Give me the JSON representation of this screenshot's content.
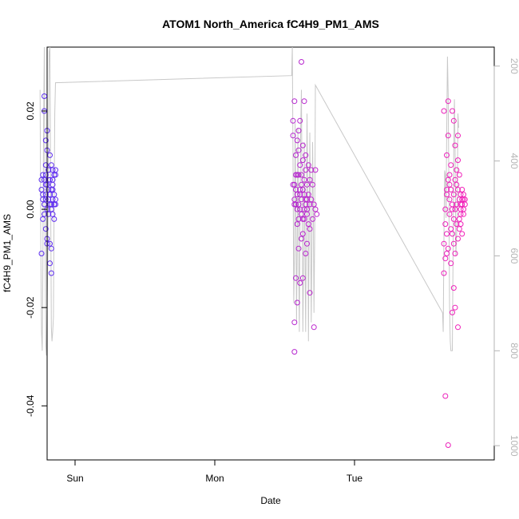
{
  "chart_data": {
    "type": "scatter",
    "title": "ATOM1 North_America fC4H9_PM1_AMS",
    "xlabel": "Date",
    "ylabel": "fC4H9_PM1_AMS",
    "x_ticks": [
      "Sun",
      "Mon",
      "Tue"
    ],
    "xlim": [
      -1.2,
      2.0
    ],
    "ylim": [
      -0.051,
      0.033
    ],
    "y_ticks": [
      -0.04,
      -0.02,
      0.0,
      0.02
    ],
    "y2lim": [
      1030,
      160
    ],
    "y2_ticks": [
      200,
      400,
      600,
      800,
      1000
    ],
    "grid": false,
    "legend": "none",
    "colors": {
      "points_start": "#5a2df2",
      "points_end": "#f220b8",
      "line": "#c8c8c8"
    },
    "series": [
      {
        "points": [
          [
            -1.24,
            0.006
          ],
          [
            -1.24,
            0.004
          ],
          [
            -1.23,
            0.003
          ],
          [
            -1.23,
            0.007
          ],
          [
            -1.23,
            -0.002
          ],
          [
            -1.22,
            0.02
          ],
          [
            -1.22,
            0.023
          ],
          [
            -1.22,
            -0.001
          ],
          [
            -1.22,
            0.001
          ],
          [
            -1.21,
            0.014
          ],
          [
            -1.21,
            -0.004
          ],
          [
            -1.21,
            0.002
          ],
          [
            -1.21,
            0.005
          ],
          [
            -1.21,
            0.007
          ],
          [
            -1.2,
            0.012
          ],
          [
            -1.2,
            -0.006
          ],
          [
            -1.2,
            -0.007
          ],
          [
            -1.2,
            0.016
          ],
          [
            -1.2,
            0.0
          ],
          [
            -1.19,
            0.008
          ],
          [
            -1.19,
            -0.001
          ],
          [
            -1.19,
            0.004
          ],
          [
            -1.19,
            0.008
          ],
          [
            -1.18,
            0.001
          ],
          [
            -1.18,
            -0.007
          ],
          [
            -1.18,
            -0.011
          ],
          [
            -1.18,
            0.011
          ],
          [
            -1.18,
            0.006
          ],
          [
            -1.17,
            0.001
          ],
          [
            -1.17,
            0.004
          ],
          [
            -1.17,
            0.009
          ],
          [
            -1.17,
            -0.008
          ],
          [
            -1.17,
            -0.013
          ],
          [
            -1.16,
            0.008
          ],
          [
            -1.16,
            0.002
          ],
          [
            -1.16,
            -0.001
          ],
          [
            -1.16,
            0.005
          ],
          [
            -1.15,
            0.007
          ],
          [
            -1.15,
            0.001
          ],
          [
            -1.15,
            0.003
          ],
          [
            -1.15,
            -0.002
          ],
          [
            -1.14,
            0.007
          ],
          [
            -1.14,
            0.002
          ],
          [
            -1.14,
            0.001
          ],
          [
            -1.24,
            -0.009
          ],
          [
            -1.23,
            0.002
          ],
          [
            -1.22,
            0.006
          ],
          [
            -1.21,
            0.009
          ],
          [
            -1.19,
            0.002
          ],
          [
            -1.17,
            0.0
          ],
          [
            -1.16,
            0.004
          ],
          [
            -1.15,
            0.001
          ],
          [
            -1.2,
            0.005
          ],
          [
            -1.18,
            0.003
          ],
          [
            -1.16,
            0.006
          ],
          [
            -1.14,
            0.008
          ],
          [
            -1.19,
            0.006
          ],
          [
            -1.21,
            0.003
          ],
          [
            0.56,
            0.018
          ],
          [
            0.56,
            0.015
          ],
          [
            0.56,
            0.005
          ],
          [
            0.57,
            0.001
          ],
          [
            0.57,
            -0.023
          ],
          [
            0.57,
            0.022
          ],
          [
            0.57,
            0.005
          ],
          [
            0.57,
            -0.029
          ],
          [
            0.58,
            0.011
          ],
          [
            0.58,
            0.004
          ],
          [
            0.58,
            -0.014
          ],
          [
            0.58,
            0.001
          ],
          [
            0.59,
            -0.019
          ],
          [
            0.59,
            0.003
          ],
          [
            0.59,
            0.0
          ],
          [
            0.59,
            0.014
          ],
          [
            0.6,
            -0.008
          ],
          [
            0.6,
            0.007
          ],
          [
            0.6,
            -0.002
          ],
          [
            0.6,
            0.016
          ],
          [
            0.6,
            0.012
          ],
          [
            0.61,
            -0.015
          ],
          [
            0.61,
            0.003
          ],
          [
            0.61,
            0.0
          ],
          [
            0.61,
            0.009
          ],
          [
            0.62,
            0.03
          ],
          [
            0.62,
            -0.006
          ],
          [
            0.62,
            0.007
          ],
          [
            0.62,
            0.002
          ],
          [
            0.62,
            -0.001
          ],
          [
            0.63,
            -0.014
          ],
          [
            0.63,
            -0.005
          ],
          [
            0.63,
            0.004
          ],
          [
            0.63,
            0.013
          ],
          [
            0.64,
            0.0
          ],
          [
            0.64,
            0.006
          ],
          [
            0.64,
            -0.002
          ],
          [
            0.64,
            0.022
          ],
          [
            0.65,
            -0.009
          ],
          [
            0.65,
            0.011
          ],
          [
            0.65,
            0.002
          ],
          [
            0.65,
            0.008
          ],
          [
            0.66,
            -0.001
          ],
          [
            0.66,
            0.005
          ],
          [
            0.66,
            -0.007
          ],
          [
            0.66,
            0.0
          ],
          [
            0.67,
            -0.003
          ],
          [
            0.67,
            0.009
          ],
          [
            0.67,
            0.003
          ],
          [
            0.68,
            -0.017
          ],
          [
            0.68,
            0.006
          ],
          [
            0.68,
            0.001
          ],
          [
            0.69,
            0.002
          ],
          [
            0.69,
            0.008
          ],
          [
            0.7,
            -0.002
          ],
          [
            0.7,
            0.005
          ],
          [
            0.71,
            0.001
          ],
          [
            0.71,
            -0.024
          ],
          [
            0.72,
            0.0
          ],
          [
            0.72,
            0.008
          ],
          [
            0.73,
            -0.001
          ],
          [
            0.57,
            0.002
          ],
          [
            0.59,
            -0.003
          ],
          [
            0.61,
            0.004
          ],
          [
            0.63,
            -0.002
          ],
          [
            0.65,
            0.001
          ],
          [
            0.58,
            0.007
          ],
          [
            0.6,
            0.001
          ],
          [
            0.62,
            0.005
          ],
          [
            0.64,
            0.003
          ],
          [
            0.66,
            0.002
          ],
          [
            0.68,
            -0.004
          ],
          [
            0.63,
            0.01
          ],
          [
            0.61,
            0.018
          ],
          [
            0.59,
            0.007
          ],
          [
            1.64,
            0.02
          ],
          [
            1.64,
            -0.007
          ],
          [
            1.64,
            -0.013
          ],
          [
            1.65,
            -0.038
          ],
          [
            1.65,
            0.0
          ],
          [
            1.65,
            -0.01
          ],
          [
            1.66,
            0.004
          ],
          [
            1.66,
            0.011
          ],
          [
            1.66,
            -0.005
          ],
          [
            1.66,
            0.003
          ],
          [
            1.67,
            -0.048
          ],
          [
            1.67,
            0.022
          ],
          [
            1.67,
            0.015
          ],
          [
            1.67,
            -0.008
          ],
          [
            1.68,
            -0.001
          ],
          [
            1.68,
            0.002
          ],
          [
            1.68,
            0.007
          ],
          [
            1.69,
            -0.004
          ],
          [
            1.69,
            0.009
          ],
          [
            1.69,
            -0.011
          ],
          [
            1.7,
            0.001
          ],
          [
            1.7,
            0.02
          ],
          [
            1.7,
            -0.005
          ],
          [
            1.71,
            0.018
          ],
          [
            1.71,
            0.003
          ],
          [
            1.71,
            -0.016
          ],
          [
            1.71,
            -0.007
          ],
          [
            1.72,
            0.0
          ],
          [
            1.72,
            0.013
          ],
          [
            1.72,
            -0.02
          ],
          [
            1.73,
            0.008
          ],
          [
            1.73,
            -0.003
          ],
          [
            1.73,
            0.005
          ],
          [
            1.74,
            -0.024
          ],
          [
            1.74,
            0.01
          ],
          [
            1.74,
            0.015
          ],
          [
            1.75,
            -0.002
          ],
          [
            1.75,
            0.002
          ],
          [
            1.75,
            0.007
          ],
          [
            1.76,
            -0.001
          ],
          [
            1.76,
            0.0
          ],
          [
            1.76,
            0.003
          ],
          [
            1.77,
            -0.005
          ],
          [
            1.77,
            0.001
          ],
          [
            1.77,
            0.004
          ],
          [
            1.78,
            0.002
          ],
          [
            1.78,
            -0.001
          ],
          [
            1.78,
            0.003
          ],
          [
            1.79,
            0.001
          ],
          [
            1.79,
            0.002
          ],
          [
            1.65,
            -0.003
          ],
          [
            1.67,
            0.006
          ],
          [
            1.69,
            0.004
          ],
          [
            1.71,
            -0.002
          ],
          [
            1.73,
            0.001
          ],
          [
            1.75,
            -0.004
          ],
          [
            1.77,
            0.002
          ],
          [
            1.66,
            -0.009
          ],
          [
            1.68,
            0.005
          ],
          [
            1.7,
            0.0
          ],
          [
            1.72,
            0.006
          ],
          [
            1.74,
            -0.006
          ],
          [
            1.76,
            0.001
          ],
          [
            1.78,
            0.0
          ],
          [
            1.7,
            -0.021
          ],
          [
            1.72,
            -0.009
          ],
          [
            1.74,
            0.004
          ],
          [
            1.76,
            -0.003
          ]
        ]
      },
      {
        "axis": "right",
        "line": [
          [
            -1.25,
            250
          ],
          [
            -1.245,
            580
          ],
          [
            -1.24,
            760
          ],
          [
            -1.235,
            800
          ],
          [
            -1.23,
            620
          ],
          [
            -1.225,
            320
          ],
          [
            -1.22,
            160
          ],
          [
            -1.215,
            520
          ],
          [
            -1.21,
            790
          ],
          [
            -1.205,
            810
          ],
          [
            -1.2,
            700
          ],
          [
            -1.195,
            600
          ],
          [
            -1.19,
            320
          ],
          [
            -1.185,
            170
          ],
          [
            -1.18,
            150
          ],
          [
            -1.175,
            450
          ],
          [
            -1.17,
            750
          ],
          [
            -1.165,
            780
          ],
          [
            -1.16,
            760
          ],
          [
            -1.155,
            730
          ],
          [
            -1.15,
            480
          ],
          [
            -1.145,
            300
          ],
          [
            -1.14,
            235
          ],
          [
            0.55,
            220
          ],
          [
            0.555,
            160
          ],
          [
            0.56,
            400
          ],
          [
            0.565,
            700
          ],
          [
            0.57,
            600
          ],
          [
            0.575,
            320
          ],
          [
            0.58,
            500
          ],
          [
            0.585,
            740
          ],
          [
            0.59,
            560
          ],
          [
            0.595,
            330
          ],
          [
            0.6,
            600
          ],
          [
            0.605,
            760
          ],
          [
            0.61,
            540
          ],
          [
            0.615,
            330
          ],
          [
            0.62,
            250
          ],
          [
            0.625,
            500
          ],
          [
            0.63,
            760
          ],
          [
            0.635,
            640
          ],
          [
            0.64,
            360
          ],
          [
            0.645,
            560
          ],
          [
            0.65,
            760
          ],
          [
            0.655,
            540
          ],
          [
            0.66,
            300
          ],
          [
            0.665,
            460
          ],
          [
            0.67,
            780
          ],
          [
            0.675,
            560
          ],
          [
            0.68,
            340
          ],
          [
            0.685,
            520
          ],
          [
            0.69,
            740
          ],
          [
            0.695,
            580
          ],
          [
            0.7,
            360
          ],
          [
            0.705,
            500
          ],
          [
            0.71,
            720
          ],
          [
            0.715,
            560
          ],
          [
            0.72,
            240
          ],
          [
            1.63,
            720
          ],
          [
            1.635,
            760
          ],
          [
            1.64,
            560
          ],
          [
            1.645,
            420
          ],
          [
            1.65,
            430
          ],
          [
            1.655,
            520
          ],
          [
            1.66,
            330
          ],
          [
            1.665,
            180
          ],
          [
            1.67,
            260
          ],
          [
            1.675,
            440
          ],
          [
            1.68,
            700
          ],
          [
            1.685,
            780
          ],
          [
            1.69,
            800
          ],
          [
            1.695,
            800
          ],
          [
            1.7,
            800
          ],
          [
            1.705,
            600
          ],
          [
            1.71,
            380
          ],
          [
            1.715,
            270
          ],
          [
            1.72,
            380
          ],
          [
            1.725,
            600
          ],
          [
            1.73,
            560
          ],
          [
            1.735,
            520
          ],
          [
            1.74,
            300
          ],
          [
            1.745,
            330
          ]
        ]
      }
    ]
  }
}
